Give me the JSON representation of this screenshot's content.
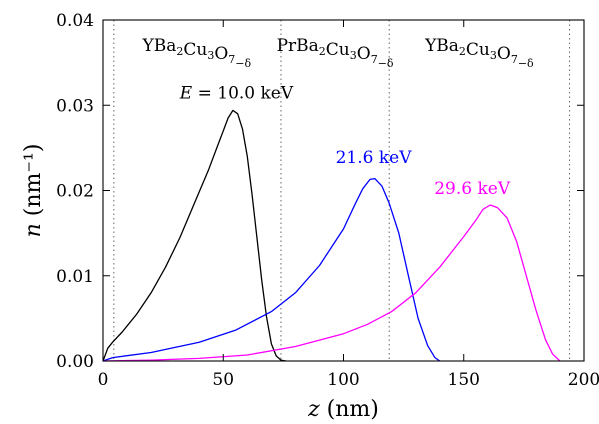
{
  "chart_data": {
    "type": "line",
    "xlabel": "z (nm)",
    "ylabel": "n (nm⁻¹)",
    "xlim": [
      0,
      200
    ],
    "ylim": [
      0,
      0.04
    ],
    "x_ticks": [
      "0",
      "50",
      "100",
      "150",
      "200"
    ],
    "y_ticks": [
      "0.00",
      "0.01",
      "0.02",
      "0.03",
      "0.04"
    ],
    "grid": false,
    "layer_boundaries_nm": [
      4.5,
      74,
      119,
      194
    ],
    "layer_labels": [
      {
        "text": "YBa2Cu3O7−δ",
        "z_center": 39
      },
      {
        "text": "PrBa2Cu3O7−δ",
        "z_center": 96.5
      },
      {
        "text": "YBa2Cu3O7−δ",
        "z_center": 156.5
      }
    ],
    "series": [
      {
        "name": "E = 10.0 keV",
        "color": "#000000",
        "points": [
          [
            0,
            0
          ],
          [
            2,
            0.0015
          ],
          [
            4,
            0.0022
          ],
          [
            8,
            0.0034
          ],
          [
            14,
            0.0055
          ],
          [
            20,
            0.008
          ],
          [
            26,
            0.011
          ],
          [
            32,
            0.0145
          ],
          [
            38,
            0.0185
          ],
          [
            44,
            0.0225
          ],
          [
            48,
            0.0255
          ],
          [
            50,
            0.027
          ],
          [
            52,
            0.0285
          ],
          [
            54,
            0.0294
          ],
          [
            56,
            0.029
          ],
          [
            58,
            0.0272
          ],
          [
            60,
            0.024
          ],
          [
            62,
            0.0195
          ],
          [
            64,
            0.0145
          ],
          [
            66,
            0.0095
          ],
          [
            68,
            0.0052
          ],
          [
            70,
            0.002
          ],
          [
            72,
            0.0006
          ],
          [
            74,
            0.0001
          ],
          [
            76,
            0
          ]
        ]
      },
      {
        "name": "21.6 keV",
        "color": "#0000ff",
        "points": [
          [
            0,
            0
          ],
          [
            4,
            0.0004
          ],
          [
            20,
            0.001
          ],
          [
            40,
            0.0022
          ],
          [
            55,
            0.0036
          ],
          [
            70,
            0.0058
          ],
          [
            80,
            0.008
          ],
          [
            90,
            0.0112
          ],
          [
            100,
            0.0155
          ],
          [
            105,
            0.0185
          ],
          [
            108,
            0.0202
          ],
          [
            111,
            0.0213
          ],
          [
            113,
            0.0214
          ],
          [
            116,
            0.0205
          ],
          [
            119,
            0.0185
          ],
          [
            123,
            0.015
          ],
          [
            127,
            0.01
          ],
          [
            131,
            0.005
          ],
          [
            135,
            0.0018
          ],
          [
            138,
            0.0004
          ],
          [
            140,
            0
          ]
        ]
      },
      {
        "name": "29.6 keV",
        "color": "#ff00ff",
        "points": [
          [
            0,
            0
          ],
          [
            20,
            0.0001
          ],
          [
            40,
            0.0003
          ],
          [
            60,
            0.0007
          ],
          [
            80,
            0.0017
          ],
          [
            100,
            0.0032
          ],
          [
            110,
            0.0043
          ],
          [
            120,
            0.0058
          ],
          [
            130,
            0.008
          ],
          [
            140,
            0.011
          ],
          [
            150,
            0.0146
          ],
          [
            155,
            0.0165
          ],
          [
            158,
            0.0178
          ],
          [
            161,
            0.0183
          ],
          [
            164,
            0.018
          ],
          [
            168,
            0.0168
          ],
          [
            172,
            0.014
          ],
          [
            176,
            0.01
          ],
          [
            180,
            0.006
          ],
          [
            184,
            0.0025
          ],
          [
            187,
            0.0008
          ],
          [
            190,
            0
          ]
        ]
      }
    ],
    "annotations": [
      {
        "text": "E = 10.0 keV",
        "x": 55.5,
        "y": 0.0308,
        "color": "#000000"
      },
      {
        "text": "21.6 keV",
        "x": 112.5,
        "y": 0.0232,
        "color": "#0000ff"
      },
      {
        "text": "29.6 keV",
        "x": 153.5,
        "y": 0.0196,
        "color": "#ff00ff"
      }
    ]
  }
}
